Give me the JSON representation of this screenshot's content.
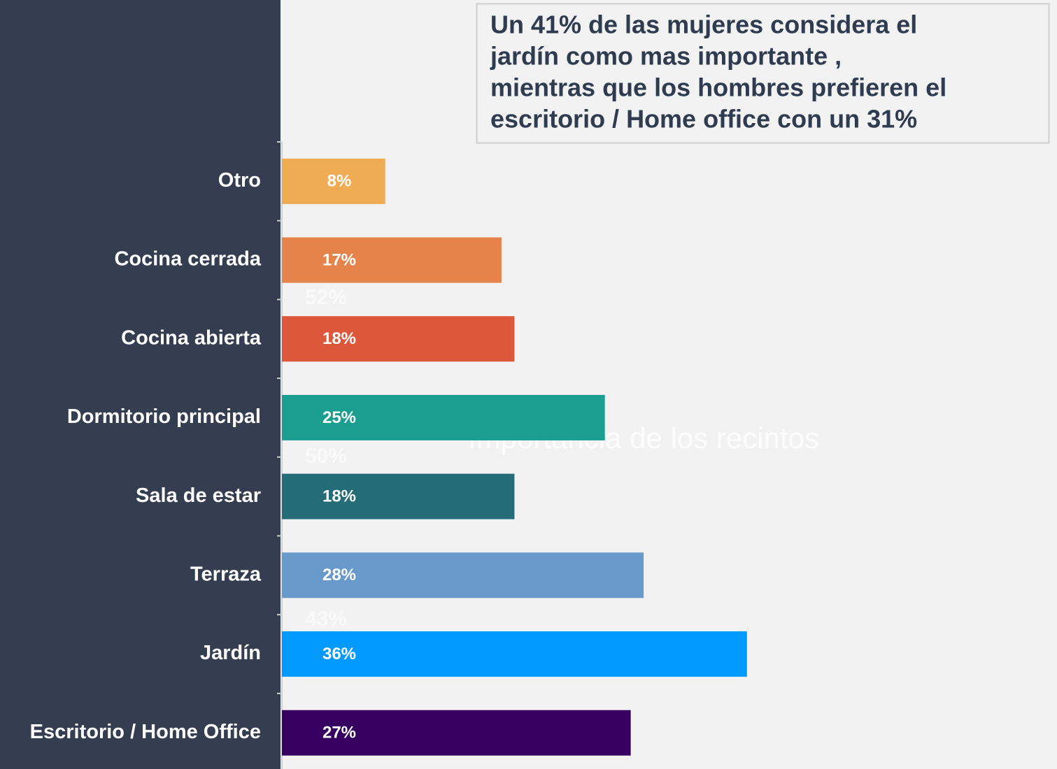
{
  "chart_data": {
    "type": "hbar",
    "title": "Importancia de los recintos",
    "headline": [
      "Un 41% de las mujeres considera el",
      "jardín como mas importante ,",
      "mientras que los hombres prefieren el",
      "escritorio / Home office con un 31%"
    ],
    "annotations": [
      "52%",
      "50%",
      "43%"
    ],
    "categories": [
      "Otro",
      "Cocina cerrada",
      "Cocina abierta",
      "Dormitorio principal",
      "Sala de estar",
      "Terraza",
      "Jardín",
      "Escritorio / Home Office"
    ],
    "values": [
      8,
      17,
      18,
      25,
      18,
      28,
      36,
      27
    ],
    "value_labels": [
      "8%",
      "17%",
      "18%",
      "25%",
      "18%",
      "28%",
      "36%",
      "27%"
    ],
    "colors": [
      "#f0ab55",
      "#e6834a",
      "#dd583b",
      "#199e8f",
      "#246c77",
      "#6899cb",
      "#039aff",
      "#35005f"
    ],
    "xlim": [
      0,
      60
    ]
  }
}
